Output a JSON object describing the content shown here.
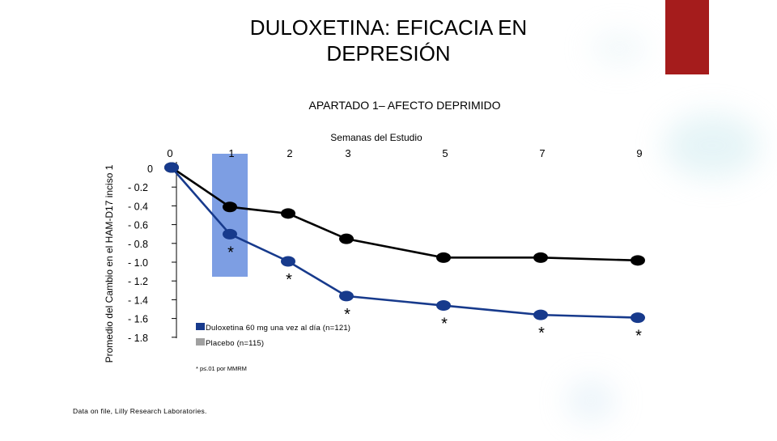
{
  "slide": {
    "title_line1": "DULOXETINA: EFICACIA EN",
    "title_line2": "DEPRESIÓN",
    "subtitle": "APARTADO 1– AFECTO DEPRIMIDO",
    "source_note": "Data on file, Lilly Research Laboratories.",
    "accent_color": "#a51c1c"
  },
  "chart_data": {
    "type": "line",
    "xlabel": "Semanas del Estudio",
    "ylabel": "Promedio del Cambio en el HAM-D17 inciso 1",
    "x": [
      0,
      1,
      2,
      3,
      5,
      7,
      9
    ],
    "x_tick_labels": [
      "0",
      "1",
      "2",
      "3",
      "5",
      "7",
      "9"
    ],
    "y_tick_labels": [
      "0",
      "- 0.2",
      "- 0.4",
      "- 0.6",
      "- 0.8",
      "- 1.0",
      "- 1.2",
      "- 1.4",
      "- 1.6",
      "- 1.8"
    ],
    "y_ticks": [
      0,
      -0.2,
      -0.4,
      -0.6,
      -0.8,
      -1.0,
      -1.2,
      -1.4,
      -1.6,
      -1.8
    ],
    "ylim": [
      -1.8,
      0
    ],
    "highlight_week": 1,
    "highlight_color": "#6f93e0",
    "series": [
      {
        "name": "Duloxetina 60 mg una vez al día (n=121)",
        "color": "#173a8c",
        "values": [
          0,
          -0.71,
          -1.0,
          -1.37,
          -1.47,
          -1.57,
          -1.6
        ],
        "significance_markers": [
          "",
          "*",
          "*",
          "*",
          "*",
          "*",
          "*"
        ]
      },
      {
        "name": "Placebo (n=115)",
        "color": "#000000",
        "values": [
          0,
          -0.42,
          -0.49,
          -0.76,
          -0.96,
          -0.96,
          -0.99
        ]
      }
    ],
    "legend_swatches": [
      "#173a8c",
      "#a0a0a0"
    ],
    "legend_position": "bottom-center",
    "annotation": "* p≤.01 por MMRM"
  }
}
